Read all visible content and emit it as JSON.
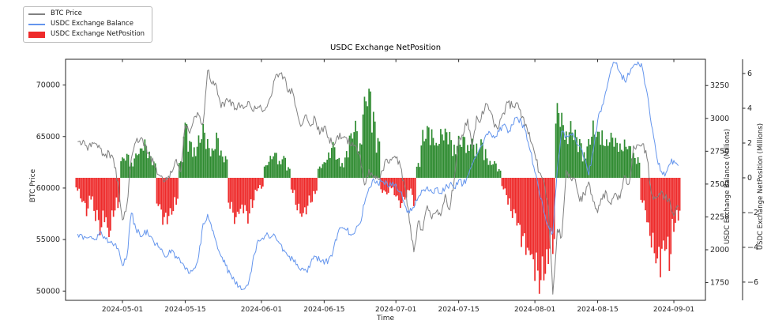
{
  "figure": {
    "title": "USDC Exchange NetPosition",
    "xlabel": "Time"
  },
  "legend": {
    "items": [
      {
        "label": "BTC Price",
        "swatch": "line",
        "color": "#808080"
      },
      {
        "label": "USDC Exchange Balance",
        "swatch": "line",
        "color": "#6495ED"
      },
      {
        "label": "USDC Exchange NetPosition",
        "swatch": "patch",
        "color": "#ee2a2a"
      }
    ]
  },
  "chart_data": {
    "type": "line+bar",
    "title": "USDC Exchange NetPosition",
    "xlabel": "Time",
    "grid": false,
    "legend_position": "upper-left-outside",
    "x_ticks": [
      {
        "label": "2024-05-01",
        "day": 10
      },
      {
        "label": "2024-05-15",
        "day": 24
      },
      {
        "label": "2024-06-01",
        "day": 41
      },
      {
        "label": "2024-06-15",
        "day": 55
      },
      {
        "label": "2024-07-01",
        "day": 71
      },
      {
        "label": "2024-07-15",
        "day": 85
      },
      {
        "label": "2024-08-01",
        "day": 102
      },
      {
        "label": "2024-08-15",
        "day": 116
      },
      {
        "label": "2024-09-01",
        "day": 133
      }
    ],
    "axes": {
      "btc": {
        "label": "BTC Price",
        "side": "left",
        "ticks": [
          50000,
          55000,
          60000,
          65000,
          70000
        ],
        "tick_labels": [
          "50000",
          "55000",
          "60000",
          "65000",
          "70000"
        ],
        "range": [
          49100,
          72500
        ]
      },
      "balance": {
        "label": "USDC Exchange Balance (Millions)",
        "side": "right",
        "ticks": [
          1750,
          2000,
          2250,
          2500,
          2750,
          3000,
          3250
        ],
        "tick_labels": [
          "1750",
          "2000",
          "2250",
          "2500",
          "2750",
          "3000",
          "3250"
        ],
        "range": [
          1615,
          3450
        ]
      },
      "netpos": {
        "label": "USDC Exchange NetPosition (Millions)",
        "side": "right-offset",
        "ticks": [
          -6,
          -4,
          -2,
          0,
          2,
          4,
          6
        ],
        "tick_labels": [
          "−6",
          "−4",
          "−2",
          "0",
          "2",
          "4",
          "6"
        ],
        "range": [
          -7.05,
          6.82
        ]
      }
    },
    "series": [
      {
        "name": "BTC Price",
        "axis": "btc",
        "kind": "line",
        "color": "#808080",
        "values": [
          64500,
          64300,
          64100,
          64000,
          64300,
          63900,
          63100,
          63500,
          62800,
          60600,
          56900,
          58400,
          62900,
          64500,
          64800,
          64100,
          63200,
          62300,
          61300,
          60900,
          60800,
          61500,
          62800,
          61600,
          66100,
          65300,
          66900,
          67100,
          66300,
          71400,
          70100,
          69900,
          67800,
          68500,
          68600,
          67600,
          68300,
          67700,
          68400,
          67500,
          67700,
          67700,
          67800,
          68800,
          70600,
          71100,
          70800,
          69300,
          69300,
          67300,
          66100,
          67100,
          66000,
          66800,
          65200,
          66000,
          64900,
          64200,
          65100,
          64900,
          64900,
          64100,
          64100,
          63200,
          60300,
          61800,
          61000,
          60900,
          61700,
          62800,
          62700,
          62900,
          62100,
          60200,
          56800,
          53800,
          56800,
          55900,
          58300,
          57000,
          57700,
          57300,
          59400,
          57900,
          60800,
          64700,
          65100,
          66700,
          63800,
          67000,
          66700,
          68200,
          67500,
          65900,
          66000,
          67300,
          68300,
          67900,
          68300,
          66800,
          66200,
          64600,
          63300,
          61500,
          60700,
          58200,
          49700,
          56000,
          55300,
          61700,
          60900,
          60900,
          58700,
          59400,
          60600,
          58700,
          57600,
          58900,
          59500,
          58400,
          59500,
          59000,
          61200,
          60400,
          64100,
          64200,
          64300,
          62900,
          59500,
          59000,
          59400,
          59100,
          58970,
          57300,
          58200
        ]
      },
      {
        "name": "USDC Exchange Balance",
        "axis": "balance",
        "kind": "line",
        "color": "#6495ED",
        "values": [
          2120,
          2110,
          2090,
          2100,
          2080,
          2140,
          2100,
          2060,
          2030,
          2010,
          1880,
          1950,
          2280,
          2160,
          2100,
          2150,
          2100,
          2060,
          2020,
          1980,
          1950,
          2000,
          1950,
          1900,
          1850,
          1820,
          1860,
          1950,
          2200,
          2270,
          2150,
          2050,
          1950,
          1880,
          1820,
          1760,
          1720,
          1700,
          1730,
          1900,
          2050,
          2080,
          2110,
          2090,
          2110,
          2050,
          2000,
          1950,
          1930,
          1890,
          1860,
          1840,
          1900,
          1950,
          1920,
          1890,
          1930,
          1990,
          2120,
          2170,
          2150,
          2110,
          2150,
          2200,
          2350,
          2470,
          2540,
          2500,
          2520,
          2510,
          2490,
          2500,
          2440,
          2340,
          2280,
          2320,
          2400,
          2450,
          2480,
          2440,
          2470,
          2430,
          2470,
          2500,
          2470,
          2530,
          2500,
          2560,
          2650,
          2720,
          2790,
          2870,
          2890,
          2850,
          2900,
          2950,
          2890,
          2950,
          3010,
          2970,
          2900,
          2750,
          2590,
          2430,
          2290,
          2180,
          2130,
          2620,
          2900,
          2870,
          2880,
          2850,
          2790,
          2690,
          2570,
          2750,
          2980,
          3100,
          3220,
          3380,
          3420,
          3350,
          3290,
          3330,
          3400,
          3430,
          3380,
          3200,
          2950,
          2750,
          2600,
          2560,
          2650,
          2680,
          2640
        ]
      },
      {
        "name": "USDC Exchange NetPosition",
        "axis": "netpos",
        "kind": "bar",
        "color_positive": "#2e8b30",
        "color_negative": "#ee2a2a",
        "values": [
          -0.8,
          -1.4,
          -2.0,
          -1.2,
          -2.4,
          -3.0,
          -2.6,
          -3.3,
          -2.4,
          -1.6,
          1.2,
          1.5,
          0.8,
          1.4,
          1.8,
          2.0,
          1.4,
          0.9,
          -1.8,
          -2.6,
          -2.9,
          -2.2,
          -1.6,
          1.0,
          3.3,
          2.2,
          1.6,
          2.4,
          2.8,
          2.2,
          1.8,
          2.4,
          1.6,
          1.2,
          -1.8,
          -2.7,
          -2.3,
          -1.9,
          -2.4,
          -1.6,
          -0.8,
          -0.6,
          0.8,
          1.2,
          1.5,
          1.0,
          1.4,
          0.6,
          -0.9,
          -1.8,
          -2.4,
          -2.0,
          -1.5,
          -1.0,
          0.6,
          1.0,
          1.5,
          2.0,
          1.2,
          0.8,
          1.4,
          2.8,
          3.2,
          2.2,
          4.6,
          5.4,
          3.6,
          2.2,
          -0.8,
          -1.0,
          -0.6,
          -1.2,
          -1.7,
          -1.4,
          -0.8,
          -1.5,
          0.8,
          2.6,
          3.2,
          2.8,
          2.2,
          2.6,
          3.0,
          2.4,
          1.8,
          2.2,
          2.6,
          2.0,
          2.4,
          1.9,
          2.3,
          1.5,
          0.9,
          0.9,
          0.5,
          -0.7,
          -1.5,
          -2.3,
          -3.0,
          -3.8,
          -4.4,
          -4.9,
          -5.8,
          -6.3,
          -6.0,
          -5.2,
          -4.4,
          4.7,
          3.8,
          2.6,
          3.2,
          2.8,
          2.2,
          1.4,
          2.4,
          3.0,
          2.9,
          2.5,
          2.1,
          2.6,
          2.2,
          1.8,
          2.3,
          1.9,
          1.5,
          1.1,
          -1.6,
          -2.8,
          -4.2,
          -5.1,
          -5.3,
          -4.3,
          -4.9,
          -3.4,
          -2.3
        ]
      }
    ]
  }
}
